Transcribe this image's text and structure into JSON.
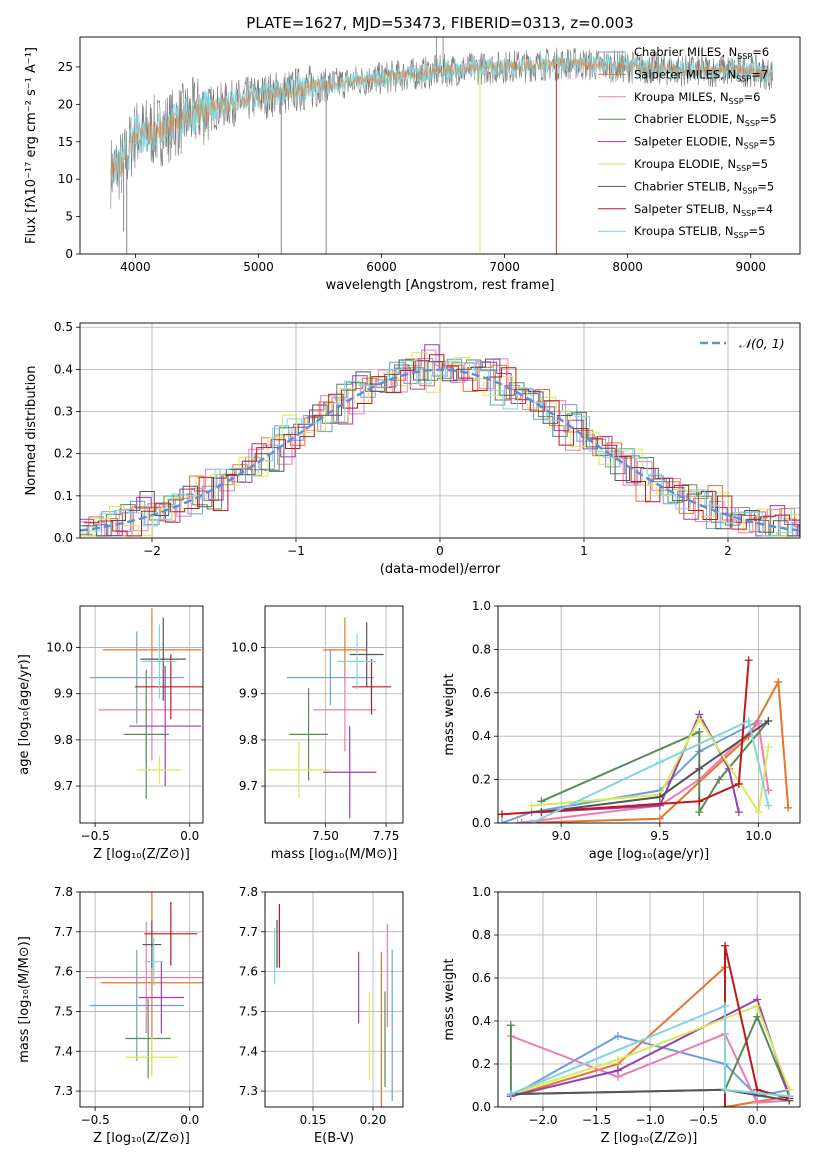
{
  "figure_title": "PLATE=1627, MJD=53473, FIBERID=0313, z=0.003",
  "model_colors": [
    "#6f9fd8",
    "#e8742a",
    "#f07ab4",
    "#5a8a5a",
    "#9a3fb0",
    "#d6ea5a",
    "#555555",
    "#c01818",
    "#7fd6e0"
  ],
  "chart_data": [
    {
      "id": "spectrum",
      "type": "line",
      "title": "PLATE=1627, MJD=53473, FIBERID=0313, z=0.003",
      "xlabel": "wavelength [Angstrom, rest frame]",
      "ylabel": "Flux [fλ10⁻¹⁷ erg cm⁻² s⁻¹ A⁻¹]",
      "xlim": [
        3550,
        9400
      ],
      "ylim": [
        0,
        29
      ],
      "xticks": [
        4000,
        5000,
        6000,
        7000,
        8000,
        9000
      ],
      "yticks": [
        0,
        5,
        10,
        15,
        20,
        25
      ],
      "legend_position": "upper-right",
      "grid": false,
      "data_range_x": [
        3800,
        9180
      ],
      "continuum_x": [
        3800,
        3900,
        4000,
        4200,
        4500,
        5000,
        5500,
        6000,
        6500,
        7000,
        7500,
        8000,
        8500,
        9000,
        9180
      ],
      "continuum_y": [
        11,
        12,
        16,
        16.5,
        19,
        21,
        22.5,
        23.5,
        24.5,
        25,
        25.5,
        25,
        24.5,
        24.5,
        24
      ],
      "observed_color": "#7a7a7a",
      "model_color": "#7fd6e0",
      "dips": [
        {
          "x": 3905,
          "to": 3
        },
        {
          "x": 3930,
          "to": 0
        },
        {
          "x": 5185,
          "to": 0
        },
        {
          "x": 5550,
          "to": 0
        },
        {
          "x": 6800,
          "to": 0
        },
        {
          "x": 7420,
          "to": 0
        }
      ],
      "spikes": [
        {
          "x": 6445,
          "to": 29
        },
        {
          "x": 6500,
          "to": 29
        },
        {
          "x": 4830,
          "to": 22
        }
      ],
      "series": [
        {
          "name": "Chabrier MILES, N",
          "sub": "SSP",
          "suffix": "=6"
        },
        {
          "name": "Salpeter MILES, N",
          "sub": "SSP",
          "suffix": "=7"
        },
        {
          "name": "Kroupa MILES, N",
          "sub": "SSP",
          "suffix": "=6"
        },
        {
          "name": "Chabrier ELODIE, N",
          "sub": "SSP",
          "suffix": "=5"
        },
        {
          "name": "Salpeter ELODIE, N",
          "sub": "SSP",
          "suffix": "=5"
        },
        {
          "name": "Kroupa ELODIE, N",
          "sub": "SSP",
          "suffix": "=5"
        },
        {
          "name": "Chabrier STELIB, N",
          "sub": "SSP",
          "suffix": "=5"
        },
        {
          "name": "Salpeter STELIB, N",
          "sub": "SSP",
          "suffix": "=4"
        },
        {
          "name": "Kroupa STELIB, N",
          "sub": "SSP",
          "suffix": "=5"
        }
      ]
    },
    {
      "id": "residuals",
      "type": "histogram",
      "xlabel": "(data-model)/error",
      "ylabel": "Normed distribution",
      "xlim": [
        -2.5,
        2.5
      ],
      "ylim": [
        0,
        0.51
      ],
      "xticks": [
        -2,
        -1,
        0,
        1,
        2
      ],
      "xtick_labels": [
        "−2",
        "−1",
        "0",
        "1",
        "2"
      ],
      "yticks": [
        0.0,
        0.1,
        0.2,
        0.3,
        0.4,
        0.5
      ],
      "ytick_labels": [
        "0.0",
        "0.1",
        "0.2",
        "0.3",
        "0.4",
        "0.5"
      ],
      "grid": true,
      "bin_width": 0.1,
      "legend": {
        "label": "𝒩(0, 1)",
        "position": "upper-right"
      },
      "gaussian": {
        "mean": 0,
        "sigma": 1,
        "style": "dashed",
        "color": "#5b8fd6"
      },
      "hist_offsets": [
        [
          0.012,
          -0.015,
          0.02,
          -0.01,
          0.018,
          -0.022,
          0.01,
          0.015,
          -0.018,
          0.005,
          0.021,
          -0.012
        ],
        [
          -0.015,
          0.02,
          0.01,
          -0.025,
          0.012,
          0.018,
          -0.02,
          0.008,
          0.025,
          -0.01,
          -0.005,
          0.016
        ],
        [
          0.02,
          0.01,
          -0.02,
          0.015,
          -0.012,
          0.025,
          0.005,
          -0.018,
          0.01,
          0.02,
          -0.022,
          0.008
        ],
        [
          -0.01,
          -0.02,
          0.015,
          0.02,
          0.01,
          -0.015,
          0.022,
          0.012,
          -0.01,
          -0.02,
          0.015,
          0.005
        ],
        [
          0.025,
          0.005,
          -0.015,
          0.01,
          0.02,
          0.012,
          -0.025,
          0.018,
          0.005,
          -0.012,
          0.01,
          -0.02
        ],
        [
          -0.022,
          0.015,
          0.025,
          -0.005,
          -0.018,
          0.01,
          0.015,
          -0.01,
          0.02,
          0.012,
          -0.015,
          0.022
        ],
        [
          0.008,
          -0.025,
          0.005,
          0.012,
          0.025,
          -0.008,
          0.012,
          0.02,
          -0.015,
          0.008,
          0.02,
          -0.01
        ],
        [
          0.015,
          0.01,
          -0.01,
          -0.02,
          0.005,
          0.02,
          -0.01,
          -0.012,
          0.018,
          -0.025,
          0.005,
          0.012
        ],
        [
          -0.005,
          0.022,
          0.018,
          0.008,
          -0.01,
          -0.02,
          0.02,
          0.005,
          -0.008,
          0.015,
          0.018,
          -0.015
        ]
      ]
    },
    {
      "id": "age_vs_Z",
      "type": "errorbar",
      "xlabel": "Z [log₁₀(Z/Z⊙)]",
      "ylabel": "age  [log₁₀(age/yr)]",
      "xlim": [
        -0.58,
        0.07
      ],
      "ylim": [
        9.62,
        10.09
      ],
      "xticks": [
        -0.5,
        0.0
      ],
      "xtick_labels": [
        "−0.5",
        "0.0"
      ],
      "yticks": [
        9.7,
        9.8,
        9.9,
        10.0
      ],
      "ytick_labels": [
        "9.7",
        "9.8",
        "9.9",
        "10.0"
      ],
      "grid": true,
      "points": [
        {
          "x": -0.28,
          "xerr": 0.25,
          "y": 9.935,
          "yerr": 0.1
        },
        {
          "x": -0.2,
          "xerr": 0.26,
          "y": 9.995,
          "yerr": 0.09
        },
        {
          "x": -0.2,
          "xerr": 0.28,
          "y": 9.865,
          "yerr": 0.11
        },
        {
          "x": -0.23,
          "xerr": 0.12,
          "y": 9.812,
          "yerr": 0.14
        },
        {
          "x": -0.13,
          "xerr": 0.19,
          "y": 9.83,
          "yerr": 0.13
        },
        {
          "x": -0.16,
          "xerr": 0.12,
          "y": 9.735,
          "yerr": 0.03
        },
        {
          "x": -0.14,
          "xerr": 0.12,
          "y": 9.975,
          "yerr": 0.09
        },
        {
          "x": -0.1,
          "xerr": 0.19,
          "y": 9.915,
          "yerr": 0.07
        },
        {
          "x": -0.16,
          "xerr": 0.09,
          "y": 9.97,
          "yerr": 0.08
        }
      ]
    },
    {
      "id": "age_vs_mass",
      "type": "errorbar",
      "xlabel": "mass [log₁₀(M/M⊙)]",
      "ylabel": "",
      "xlim": [
        7.25,
        7.82
      ],
      "ylim": [
        9.62,
        10.09
      ],
      "xticks": [
        7.5,
        7.75
      ],
      "xtick_labels": [
        "7.50",
        "7.75"
      ],
      "yticks": [
        9.7,
        9.8,
        9.9,
        10.0
      ],
      "ytick_labels": [
        "9.7",
        "9.8",
        "9.9",
        "10.0"
      ],
      "grid": true,
      "points": [
        {
          "x": 7.52,
          "xerr": 0.18,
          "y": 9.935,
          "yerr": 0.06
        },
        {
          "x": 7.58,
          "xerr": 0.09,
          "y": 9.995,
          "yerr": 0.07
        },
        {
          "x": 7.58,
          "xerr": 0.13,
          "y": 9.865,
          "yerr": 0.09
        },
        {
          "x": 7.43,
          "xerr": 0.08,
          "y": 9.812,
          "yerr": 0.1
        },
        {
          "x": 7.6,
          "xerr": 0.11,
          "y": 9.73,
          "yerr": 0.1
        },
        {
          "x": 7.39,
          "xerr": 0.13,
          "y": 9.735,
          "yerr": 0.06
        },
        {
          "x": 7.67,
          "xerr": 0.07,
          "y": 9.985,
          "yerr": 0.07
        },
        {
          "x": 7.69,
          "xerr": 0.08,
          "y": 9.915,
          "yerr": 0.06
        },
        {
          "x": 7.63,
          "xerr": 0.08,
          "y": 9.97,
          "yerr": 0.06
        }
      ]
    },
    {
      "id": "weight_vs_age",
      "type": "line",
      "xlabel": "age  [log₁₀(age/yr)]",
      "ylabel": "mass weight",
      "xlim": [
        8.68,
        10.21
      ],
      "ylim": [
        0,
        1
      ],
      "xticks": [
        9.0,
        9.5,
        10.0
      ],
      "xtick_labels": [
        "9.0",
        "9.5",
        "10.0"
      ],
      "yticks": [
        0.0,
        0.2,
        0.4,
        0.6,
        0.8,
        1.0
      ],
      "ytick_labels": [
        "0.0",
        "0.2",
        "0.4",
        "0.6",
        "0.8",
        "1.0"
      ],
      "grid": true,
      "series": [
        {
          "x": [
            8.7,
            8.85,
            9.5,
            9.7,
            10.0
          ],
          "y": [
            0.0,
            0.05,
            0.15,
            0.33,
            0.47
          ]
        },
        {
          "x": [
            8.8,
            9.5,
            9.95,
            10.1,
            10.15
          ],
          "y": [
            0.0,
            0.02,
            0.4,
            0.65,
            0.07
          ]
        },
        {
          "x": [
            8.78,
            9.5,
            9.7,
            10.0,
            10.05
          ],
          "y": [
            0.0,
            0.08,
            0.2,
            0.46,
            0.15
          ]
        },
        {
          "x": [
            8.9,
            9.7,
            9.7,
            9.8,
            10.05
          ],
          "y": [
            0.1,
            0.42,
            0.05,
            0.2,
            0.47
          ]
        },
        {
          "x": [
            8.9,
            9.5,
            9.7,
            9.85,
            9.9
          ],
          "y": [
            0.05,
            0.08,
            0.5,
            0.25,
            0.05
          ]
        },
        {
          "x": [
            8.85,
            9.5,
            9.7,
            10.0,
            10.05
          ],
          "y": [
            0.08,
            0.13,
            0.48,
            0.05,
            0.35
          ]
        },
        {
          "x": [
            8.9,
            9.5,
            9.7,
            10.05
          ],
          "y": [
            0.05,
            0.12,
            0.25,
            0.47
          ]
        },
        {
          "x": [
            8.7,
            9.7,
            9.9,
            9.95
          ],
          "y": [
            0.04,
            0.1,
            0.18,
            0.75
          ]
        },
        {
          "x": [
            8.85,
            9.5,
            9.95,
            10.05
          ],
          "y": [
            0.0,
            0.28,
            0.47,
            0.08
          ]
        }
      ]
    },
    {
      "id": "mass_vs_Z",
      "type": "errorbar",
      "xlabel": "Z [log₁₀(Z/Z⊙)]",
      "ylabel": "mass [log₁₀(M/M⊙)]",
      "xlim": [
        -0.58,
        0.07
      ],
      "ylim": [
        7.26,
        7.8
      ],
      "xticks": [
        -0.5,
        0.0
      ],
      "xtick_labels": [
        "−0.5",
        "0.0"
      ],
      "yticks": [
        7.3,
        7.4,
        7.5,
        7.6,
        7.7,
        7.8
      ],
      "ytick_labels": [
        "7.3",
        "7.4",
        "7.5",
        "7.6",
        "7.7",
        "7.8"
      ],
      "grid": true,
      "points": [
        {
          "x": -0.28,
          "xerr": 0.25,
          "y": 7.515,
          "yerr": 0.14
        },
        {
          "x": -0.2,
          "xerr": 0.27,
          "y": 7.572,
          "yerr": 0.23
        },
        {
          "x": -0.23,
          "xerr": 0.32,
          "y": 7.585,
          "yerr": 0.14
        },
        {
          "x": -0.22,
          "xerr": 0.12,
          "y": 7.432,
          "yerr": 0.1
        },
        {
          "x": -0.15,
          "xerr": 0.12,
          "y": 7.535,
          "yerr": 0.09
        },
        {
          "x": -0.2,
          "xerr": 0.14,
          "y": 7.385,
          "yerr": 0.05
        },
        {
          "x": -0.2,
          "xerr": 0.05,
          "y": 7.668,
          "yerr": 0.06
        },
        {
          "x": -0.1,
          "xerr": 0.14,
          "y": 7.695,
          "yerr": 0.08
        },
        {
          "x": -0.19,
          "xerr": 0.05,
          "y": 7.625,
          "yerr": 0.06
        }
      ]
    },
    {
      "id": "mass_vs_EBV",
      "type": "errorbar",
      "xlabel": "E(B-V)",
      "ylabel": "",
      "xlim": [
        0.11,
        0.225
      ],
      "ylim": [
        7.26,
        7.8
      ],
      "xticks": [
        0.15,
        0.2
      ],
      "xtick_labels": [
        "0.15",
        "0.20"
      ],
      "yticks": [
        7.3,
        7.4,
        7.5,
        7.6,
        7.7,
        7.8
      ],
      "ytick_labels": [
        "7.3",
        "7.4",
        "7.5",
        "7.6",
        "7.7",
        "7.8"
      ],
      "grid": true,
      "points": [
        {
          "x": 0.216,
          "xerr": 0,
          "y": 7.465,
          "yerr": 0.19
        },
        {
          "x": 0.207,
          "xerr": 0,
          "y": 7.45,
          "yerr": 0.2
        },
        {
          "x": 0.212,
          "xerr": 0,
          "y": 7.59,
          "yerr": 0.13
        },
        {
          "x": 0.21,
          "xerr": 0,
          "y": 7.43,
          "yerr": 0.12
        },
        {
          "x": 0.188,
          "xerr": 0,
          "y": 7.56,
          "yerr": 0.09
        },
        {
          "x": 0.197,
          "xerr": 0,
          "y": 7.44,
          "yerr": 0.11
        },
        {
          "x": 0.12,
          "xerr": 0,
          "y": 7.67,
          "yerr": 0.06
        },
        {
          "x": 0.122,
          "xerr": 0,
          "y": 7.69,
          "yerr": 0.08
        },
        {
          "x": 0.118,
          "xerr": 0,
          "y": 7.64,
          "yerr": 0.07
        }
      ]
    },
    {
      "id": "weight_vs_Z",
      "type": "line",
      "xlabel": "Z [log₁₀(Z/Z⊙)]",
      "ylabel": "mass weight",
      "xlim": [
        -2.42,
        0.4
      ],
      "ylim": [
        0,
        1
      ],
      "xticks": [
        -2.0,
        -1.5,
        -1.0,
        -0.5,
        0.0
      ],
      "xtick_labels": [
        "−2.0",
        "−1.5",
        "−1.0",
        "−0.5",
        "0.0"
      ],
      "yticks": [
        0.0,
        0.2,
        0.4,
        0.6,
        0.8,
        1.0
      ],
      "ytick_labels": [
        "0.0",
        "0.2",
        "0.4",
        "0.6",
        "0.8",
        "1.0"
      ],
      "grid": true,
      "series": [
        {
          "x": [
            -2.3,
            -1.3,
            -0.3,
            0.0,
            0.3
          ],
          "y": [
            0.05,
            0.33,
            0.2,
            0.05,
            0.08
          ]
        },
        {
          "x": [
            -2.3,
            -1.3,
            -0.3,
            -0.3,
            0.3
          ],
          "y": [
            0.05,
            0.2,
            0.65,
            0.0,
            0.05
          ]
        },
        {
          "x": [
            -2.3,
            -1.3,
            -0.3,
            0.0,
            0.3
          ],
          "y": [
            0.33,
            0.14,
            0.34,
            0.02,
            0.03
          ]
        },
        {
          "x": [
            -2.3,
            -2.3,
            -0.3,
            0.0,
            0.3
          ],
          "y": [
            0.38,
            0.06,
            0.08,
            0.42,
            0.05
          ]
        },
        {
          "x": [
            -2.3,
            -1.3,
            0.0,
            0.3
          ],
          "y": [
            0.05,
            0.17,
            0.5,
            0.05
          ]
        },
        {
          "x": [
            -2.3,
            -1.3,
            0.0,
            0.3
          ],
          "y": [
            0.06,
            0.22,
            0.47,
            0.08
          ]
        },
        {
          "x": [
            -2.3,
            -0.3,
            0.3
          ],
          "y": [
            0.06,
            0.08,
            0.03
          ]
        },
        {
          "x": [
            -0.3,
            -0.3,
            0.0,
            0.3
          ],
          "y": [
            0.0,
            0.75,
            0.08,
            0.04
          ]
        },
        {
          "x": [
            -2.3,
            -0.3,
            -0.3,
            0.3
          ],
          "y": [
            0.06,
            0.47,
            0.08,
            0.05
          ]
        }
      ]
    }
  ]
}
